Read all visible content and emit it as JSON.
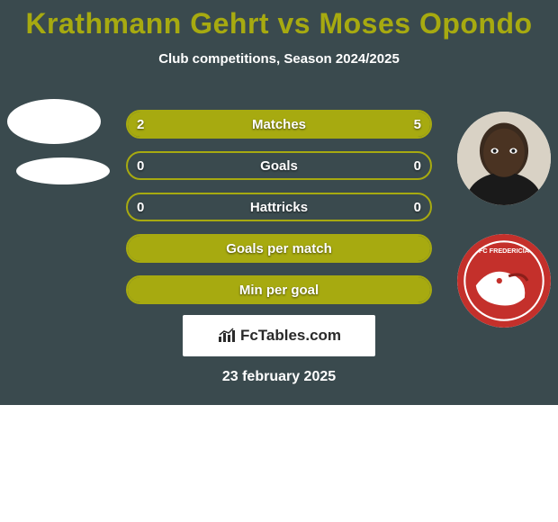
{
  "colors": {
    "bg": "#3a4a4e",
    "title": "#a7aa10",
    "subtitle": "#ffffff",
    "bar_border": "#a7aa10",
    "bar_fill_left": "#a7aa10",
    "bar_fill_right": "#a7aa10",
    "bar_empty": "#3a4a4e",
    "bar_text": "#ffffff",
    "watermark_bg": "#ffffff",
    "watermark_text": "#2a2a2a",
    "date_text": "#ffffff"
  },
  "title": "Krathmann Gehrt vs Moses Opondo",
  "subtitle": "Club competitions, Season 2024/2025",
  "bars": [
    {
      "label": "Matches",
      "left": "2",
      "right": "5",
      "left_pct": 28,
      "right_pct": 72
    },
    {
      "label": "Goals",
      "left": "0",
      "right": "0",
      "left_pct": 0,
      "right_pct": 0
    },
    {
      "label": "Hattricks",
      "left": "0",
      "right": "0",
      "left_pct": 0,
      "right_pct": 0
    },
    {
      "label": "Goals per match",
      "left": "",
      "right": "",
      "left_pct": 100,
      "right_pct": 0
    },
    {
      "label": "Min per goal",
      "left": "",
      "right": "",
      "left_pct": 100,
      "right_pct": 0
    }
  ],
  "watermark": "FcTables.com",
  "date": "23 february 2025"
}
